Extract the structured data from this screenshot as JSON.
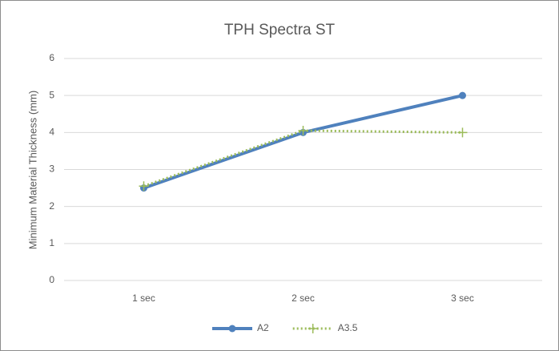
{
  "chart_data": {
    "type": "line",
    "title": "TPH Spectra ST",
    "y_label": "Minimum Material Thickness (mm)",
    "categories": [
      "1 sec",
      "2 sec",
      "3 sec"
    ],
    "series": [
      {
        "name": "A2",
        "color": "#4f81bd",
        "values": [
          2.5,
          4,
          5
        ]
      },
      {
        "name": "A3.5",
        "color": "#9bbb59",
        "values": [
          2.55,
          4.05,
          4
        ]
      }
    ],
    "ylim": [
      0,
      6
    ],
    "yticks": [
      0,
      1,
      2,
      3,
      4,
      5,
      6
    ],
    "grid": true,
    "legend": "bottom"
  }
}
